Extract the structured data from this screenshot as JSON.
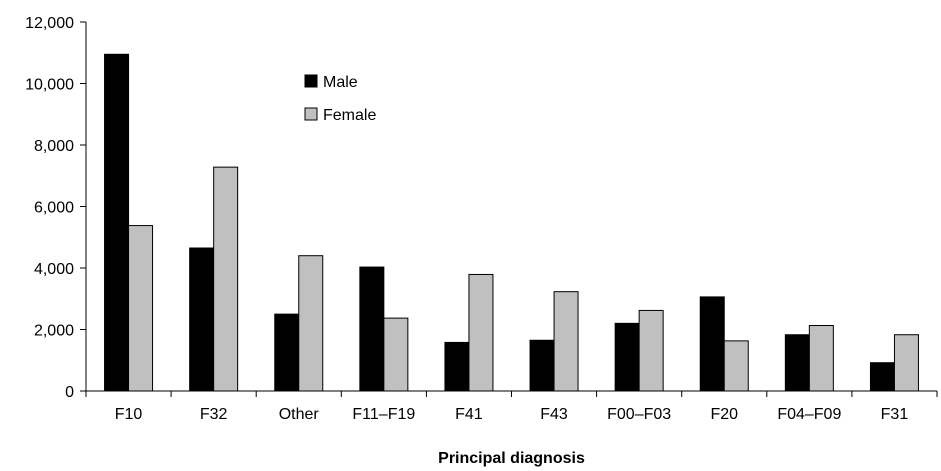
{
  "chart_data": {
    "type": "bar",
    "title": "",
    "xlabel": "Principal diagnosis",
    "ylabel": "",
    "categories": [
      "F10",
      "F32",
      "Other",
      "F11–F19",
      "F41",
      "F43",
      "F00–F03",
      "F20",
      "F04–F09",
      "F31"
    ],
    "series": [
      {
        "name": "Male",
        "color": "#000000",
        "values": [
          10950,
          4650,
          2500,
          4030,
          1580,
          1650,
          2200,
          3060,
          1830,
          920
        ]
      },
      {
        "name": "Female",
        "color": "#c0c0c0",
        "values": [
          5380,
          7280,
          4400,
          2370,
          3790,
          3230,
          2620,
          1630,
          2130,
          1830
        ]
      }
    ],
    "ylim": [
      0,
      12000
    ],
    "yticks": [
      0,
      2000,
      4000,
      6000,
      8000,
      10000,
      12000
    ],
    "ytick_labels": [
      "0",
      "2,000",
      "4,000",
      "6,000",
      "8,000",
      "10,000",
      "12,000"
    ],
    "grid": false,
    "legend_position": "top-left inside"
  }
}
